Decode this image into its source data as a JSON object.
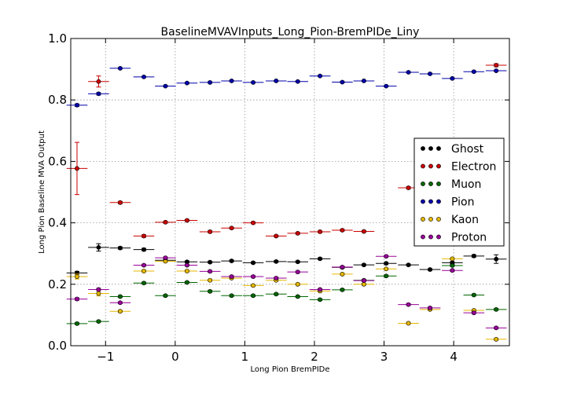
{
  "chart_data": {
    "type": "scatter",
    "title": "BaselineMVAVInputs_Long_Pion-BremPIDe_Liny",
    "xlabel": "Long Pion BremPIDe",
    "ylabel": "Long Pion Baseline MVA Output",
    "xlim": [
      -1.5,
      4.8
    ],
    "ylim": [
      0.0,
      1.0
    ],
    "xticks": [
      "−1",
      "0",
      "1",
      "2",
      "3",
      "4"
    ],
    "yticks": [
      "0.0",
      "0.2",
      "0.4",
      "0.6",
      "0.8",
      "1.0"
    ],
    "grid": true,
    "legend_position": "right",
    "bin_width": 0.3,
    "series": [
      {
        "name": "Ghost",
        "color": "#000000",
        "x": [
          -1.41,
          -1.1,
          -0.79,
          -0.45,
          -0.14,
          0.17,
          0.5,
          0.81,
          1.12,
          1.45,
          1.76,
          2.08,
          2.4,
          2.71,
          3.03,
          3.35,
          3.66,
          3.98,
          4.29,
          4.61
        ],
        "y": [
          0.237,
          0.32,
          0.318,
          0.313,
          0.278,
          0.273,
          0.272,
          0.276,
          0.27,
          0.274,
          0.273,
          0.283,
          0.255,
          0.263,
          0.268,
          0.263,
          0.248,
          0.27,
          0.292,
          0.282
        ],
        "yerr": [
          0.005,
          0.012,
          0.004,
          0.004,
          0.004,
          0.003,
          0.003,
          0.003,
          0.003,
          0.003,
          0.003,
          0.003,
          0.003,
          0.003,
          0.003,
          0.003,
          0.003,
          0.004,
          0.004,
          0.014
        ]
      },
      {
        "name": "Electron",
        "color": "#cc0000",
        "x": [
          -1.41,
          -1.1,
          -0.79,
          -0.45,
          -0.14,
          0.17,
          0.5,
          0.81,
          1.12,
          1.45,
          1.76,
          2.08,
          2.4,
          2.71,
          3.35,
          4.61
        ],
        "y": [
          0.577,
          0.86,
          0.466,
          0.357,
          0.402,
          0.408,
          0.371,
          0.383,
          0.4,
          0.357,
          0.366,
          0.371,
          0.376,
          0.372,
          0.514,
          0.913
        ],
        "yerr": [
          0.085,
          0.018,
          0.004,
          0.004,
          0.003,
          0.003,
          0.003,
          0.003,
          0.003,
          0.003,
          0.003,
          0.003,
          0.003,
          0.003,
          0.004,
          0.005
        ]
      },
      {
        "name": "Muon",
        "color": "#006600",
        "x": [
          -1.41,
          -1.1,
          -0.79,
          -0.45,
          -0.14,
          0.17,
          0.5,
          0.81,
          1.12,
          1.45,
          1.76,
          2.08,
          2.4,
          2.71,
          3.03,
          3.98,
          4.29,
          4.61
        ],
        "y": [
          0.072,
          0.079,
          0.16,
          0.204,
          0.163,
          0.206,
          0.177,
          0.163,
          0.163,
          0.168,
          0.16,
          0.15,
          0.182,
          0.213,
          0.227,
          0.261,
          0.165,
          0.118
        ],
        "yerr": [
          0.003,
          0.003,
          0.003,
          0.003,
          0.003,
          0.003,
          0.003,
          0.003,
          0.003,
          0.003,
          0.003,
          0.003,
          0.003,
          0.003,
          0.003,
          0.003,
          0.003,
          0.003
        ]
      },
      {
        "name": "Pion",
        "color": "#0000aa",
        "x": [
          -1.41,
          -1.1,
          -0.79,
          -0.45,
          -0.14,
          0.17,
          0.5,
          0.81,
          1.12,
          1.45,
          1.76,
          2.08,
          2.4,
          2.71,
          3.03,
          3.35,
          3.66,
          3.98,
          4.29,
          4.61
        ],
        "y": [
          0.783,
          0.82,
          0.903,
          0.875,
          0.845,
          0.855,
          0.857,
          0.862,
          0.857,
          0.862,
          0.86,
          0.878,
          0.858,
          0.862,
          0.845,
          0.89,
          0.885,
          0.87,
          0.892,
          0.895
        ],
        "yerr": [
          0.004,
          0.004,
          0.002,
          0.002,
          0.002,
          0.002,
          0.002,
          0.002,
          0.002,
          0.002,
          0.002,
          0.002,
          0.002,
          0.002,
          0.002,
          0.002,
          0.002,
          0.002,
          0.002,
          0.002
        ]
      },
      {
        "name": "Kaon",
        "color": "#e6b800",
        "x": [
          -1.41,
          -1.1,
          -0.79,
          -0.45,
          -0.14,
          0.17,
          0.5,
          0.81,
          1.12,
          1.45,
          1.76,
          2.08,
          2.4,
          2.71,
          3.03,
          3.35,
          3.66,
          3.98,
          4.29,
          4.61
        ],
        "y": [
          0.225,
          0.17,
          0.112,
          0.243,
          0.275,
          0.243,
          0.213,
          0.22,
          0.196,
          0.213,
          0.2,
          0.178,
          0.233,
          0.2,
          0.25,
          0.073,
          0.118,
          0.283,
          0.115,
          0.021
        ],
        "yerr": [
          0.008,
          0.008,
          0.003,
          0.003,
          0.003,
          0.003,
          0.003,
          0.003,
          0.003,
          0.003,
          0.003,
          0.003,
          0.003,
          0.003,
          0.003,
          0.003,
          0.003,
          0.003,
          0.003,
          0.003
        ]
      },
      {
        "name": "Proton",
        "color": "#990099",
        "x": [
          -1.41,
          -1.1,
          -0.79,
          -0.45,
          -0.14,
          0.17,
          0.5,
          0.81,
          1.12,
          1.45,
          1.76,
          2.08,
          2.4,
          2.71,
          3.03,
          3.35,
          3.66,
          3.98,
          4.29,
          4.61
        ],
        "y": [
          0.152,
          0.183,
          0.14,
          0.262,
          0.286,
          0.262,
          0.242,
          0.225,
          0.225,
          0.22,
          0.24,
          0.183,
          0.256,
          0.212,
          0.291,
          0.134,
          0.123,
          0.245,
          0.107,
          0.058
        ],
        "yerr": [
          0.004,
          0.004,
          0.003,
          0.003,
          0.003,
          0.003,
          0.003,
          0.003,
          0.003,
          0.003,
          0.003,
          0.003,
          0.003,
          0.003,
          0.003,
          0.003,
          0.003,
          0.003,
          0.003,
          0.003
        ]
      }
    ]
  }
}
